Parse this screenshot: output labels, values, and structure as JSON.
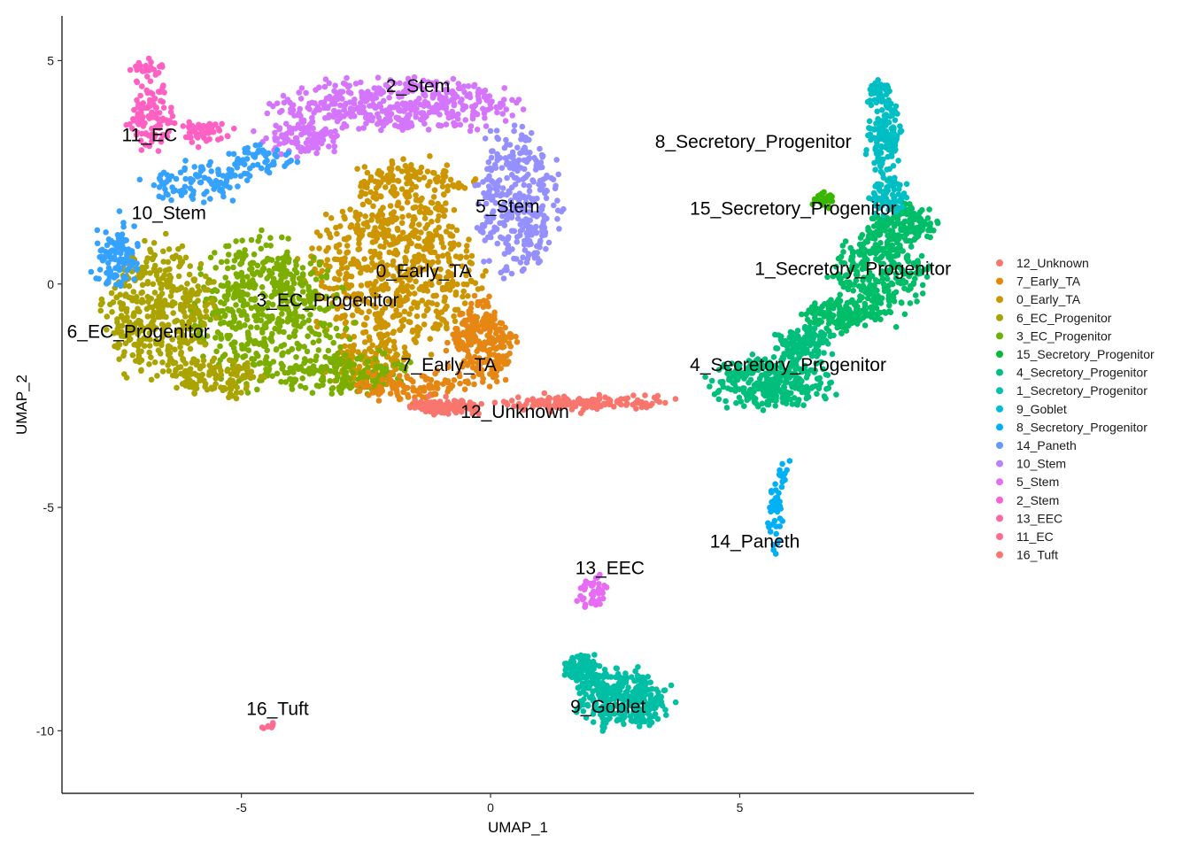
{
  "chart_data": {
    "type": "scatter",
    "title": "",
    "xlabel": "UMAP_1",
    "ylabel": "UMAP_2",
    "xlim": [
      -8.6,
      9.7
    ],
    "ylim": [
      -11.4,
      6.0
    ],
    "xticks": [
      -5,
      0,
      5
    ],
    "yticks": [
      5,
      0,
      -5,
      -10
    ],
    "xtick_labels": [
      "-5",
      "0",
      "5"
    ],
    "ytick_labels": [
      "5",
      "0",
      "-5",
      "-10"
    ],
    "grid": false,
    "legend_position": "right",
    "legend": [
      {
        "name": "12_Unknown",
        "color": "#F8766D"
      },
      {
        "name": "7_Early_TA",
        "color": "#E58700"
      },
      {
        "name": "0_Early_TA",
        "color": "#C99800"
      },
      {
        "name": "6_EC_Progenitor",
        "color": "#A3A500"
      },
      {
        "name": "3_EC_Progenitor",
        "color": "#6BB100"
      },
      {
        "name": "15_Secretory_Progenitor",
        "color": "#00BA38"
      },
      {
        "name": "4_Secretory_Progenitor",
        "color": "#00BF7D"
      },
      {
        "name": "1_Secretory_Progenitor",
        "color": "#00C0AF"
      },
      {
        "name": "9_Goblet",
        "color": "#00BCD8"
      },
      {
        "name": "8_Secretory_Progenitor",
        "color": "#00B0F6"
      },
      {
        "name": "14_Paneth",
        "color": "#619CFF"
      },
      {
        "name": "10_Stem",
        "color": "#B983FF"
      },
      {
        "name": "5_Stem",
        "color": "#E76BF3"
      },
      {
        "name": "2_Stem",
        "color": "#FD61D1"
      },
      {
        "name": "13_EEC",
        "color": "#FF67A4"
      },
      {
        "name": "11_EC",
        "color": "#FF6C91"
      },
      {
        "name": "16_Tuft",
        "color": "#F8766D"
      }
    ],
    "clusters": [
      {
        "name": "0_Early_TA",
        "label": "0_Early_TA",
        "color": "#CD9600",
        "label_x": -2.3,
        "label_y": 0.15,
        "n": 900,
        "regions": [
          {
            "cx": -2.0,
            "cy": 0.2,
            "rx": 2.0,
            "ry": 2.0,
            "w": 1.0
          },
          {
            "cx": -1.6,
            "cy": 2.2,
            "rx": 1.4,
            "ry": 0.7,
            "w": 0.25
          },
          {
            "cx": -2.5,
            "cy": -1.8,
            "rx": 1.0,
            "ry": 0.6,
            "w": 0.2
          }
        ]
      },
      {
        "name": "2_Stem",
        "label": "2_Stem",
        "color": "#D575FE",
        "label_x": -2.1,
        "label_y": 4.3,
        "n": 520,
        "regions": [
          {
            "cx": -1.9,
            "cy": 4.0,
            "rx": 2.8,
            "ry": 0.65,
            "w": 1.0
          },
          {
            "cx": -3.8,
            "cy": 3.3,
            "rx": 0.9,
            "ry": 0.45,
            "w": 0.25
          }
        ]
      },
      {
        "name": "5_Stem",
        "label": "5_Stem",
        "color": "#9590FF",
        "label_x": -0.3,
        "label_y": 1.6,
        "n": 330,
        "regions": [
          {
            "cx": 0.5,
            "cy": 1.9,
            "rx": 0.95,
            "ry": 1.9,
            "w": 1.0
          }
        ]
      },
      {
        "name": "3_EC_Progenitor",
        "label": "3_EC_Progenitor",
        "color": "#7CAE00",
        "label_x": -4.7,
        "label_y": -0.5,
        "n": 680,
        "regions": [
          {
            "cx": -4.5,
            "cy": -0.6,
            "rx": 1.7,
            "ry": 1.9,
            "w": 1.0
          },
          {
            "cx": -3.0,
            "cy": -2.0,
            "rx": 1.6,
            "ry": 0.55,
            "w": 0.35
          }
        ]
      },
      {
        "name": "6_EC_Progenitor",
        "label": "6_EC_Progenitor",
        "color": "#ABA300",
        "label_x": -8.5,
        "label_y": -1.2,
        "n": 520,
        "regions": [
          {
            "cx": -6.7,
            "cy": -0.6,
            "rx": 1.3,
            "ry": 1.75,
            "w": 1.0
          },
          {
            "cx": -5.5,
            "cy": -2.1,
            "rx": 1.1,
            "ry": 0.45,
            "w": 0.3
          }
        ]
      },
      {
        "name": "10_Stem",
        "label": "10_Stem",
        "color": "#35A2FF",
        "label_x": -7.2,
        "label_y": 1.45,
        "n": 260,
        "regions": [
          {
            "cx": -7.5,
            "cy": 0.6,
            "rx": 0.5,
            "ry": 0.9,
            "w": 0.6
          },
          {
            "cx": -5.8,
            "cy": 2.3,
            "rx": 1.3,
            "ry": 0.5,
            "w": 0.7
          },
          {
            "cx": -4.6,
            "cy": 2.8,
            "rx": 0.8,
            "ry": 0.4,
            "w": 0.4
          }
        ]
      },
      {
        "name": "11_EC",
        "label": "11_EC",
        "color": "#FF61C3",
        "label_x": -7.4,
        "label_y": 3.2,
        "n": 190,
        "regions": [
          {
            "cx": -6.8,
            "cy": 3.8,
            "rx": 0.5,
            "ry": 0.9,
            "w": 1.0
          },
          {
            "cx": -5.8,
            "cy": 3.4,
            "rx": 0.6,
            "ry": 0.35,
            "w": 0.5
          },
          {
            "cx": -6.9,
            "cy": 4.8,
            "rx": 0.4,
            "ry": 0.2,
            "w": 0.3
          }
        ]
      },
      {
        "name": "7_Early_TA",
        "label": "7_Early_TA",
        "color": "#E68613",
        "label_x": -1.8,
        "label_y": -1.95,
        "n": 360,
        "regions": [
          {
            "cx": -0.2,
            "cy": -1.3,
            "rx": 0.75,
            "ry": 1.2,
            "w": 1.0
          },
          {
            "cx": -1.6,
            "cy": -2.3,
            "rx": 1.3,
            "ry": 0.35,
            "w": 0.5
          }
        ]
      },
      {
        "name": "12_Unknown",
        "label": "12_Unknown",
        "color": "#F8766D",
        "label_x": -0.6,
        "label_y": -3.0,
        "n": 260,
        "regions": [
          {
            "cx": -0.9,
            "cy": -2.75,
            "rx": 0.9,
            "ry": 0.15,
            "w": 0.5
          },
          {
            "cx": 1.9,
            "cy": -2.65,
            "rx": 2.1,
            "ry": 0.13,
            "w": 1.0
          }
        ]
      },
      {
        "name": "1_Secretory_Progenitor",
        "label": "1_Secretory_Progenitor",
        "color": "#00BE67",
        "label_x": 5.3,
        "label_y": 0.2,
        "n": 560,
        "regions": [
          {
            "cx": 7.8,
            "cy": 0.2,
            "rx": 1.1,
            "ry": 1.3,
            "w": 1.0
          },
          {
            "cx": 8.3,
            "cy": 1.3,
            "rx": 0.8,
            "ry": 0.5,
            "w": 0.5
          },
          {
            "cx": 6.9,
            "cy": -0.7,
            "rx": 0.7,
            "ry": 0.4,
            "w": 0.4
          }
        ]
      },
      {
        "name": "4_Secretory_Progenitor",
        "label": "4_Secretory_Progenitor",
        "color": "#00BF7D",
        "label_x": 4.0,
        "label_y": -1.95,
        "n": 440,
        "regions": [
          {
            "cx": 5.6,
            "cy": -2.2,
            "rx": 1.5,
            "ry": 0.65,
            "w": 1.0
          },
          {
            "cx": 6.3,
            "cy": -1.3,
            "rx": 0.7,
            "ry": 0.4,
            "w": 0.4
          }
        ]
      },
      {
        "name": "8_Secretory_Progenitor",
        "label": "8_Secretory_Progenitor",
        "color": "#00BFC4",
        "label_x": 3.3,
        "label_y": 3.05,
        "n": 260,
        "regions": [
          {
            "cx": 7.9,
            "cy": 3.3,
            "rx": 0.4,
            "ry": 1.0,
            "w": 1.0
          },
          {
            "cx": 8.0,
            "cy": 2.0,
            "rx": 0.45,
            "ry": 0.5,
            "w": 0.6
          },
          {
            "cx": 7.8,
            "cy": 4.3,
            "rx": 0.25,
            "ry": 0.25,
            "w": 0.3
          }
        ]
      },
      {
        "name": "15_Secretory_Progenitor",
        "label": "15_Secretory_Progenitor",
        "color": "#39B600",
        "label_x": 4.0,
        "label_y": 1.55,
        "n": 30,
        "regions": [
          {
            "cx": 6.7,
            "cy": 1.9,
            "rx": 0.25,
            "ry": 0.12,
            "w": 1.0
          }
        ]
      },
      {
        "name": "14_Paneth",
        "label": "14_Paneth",
        "color": "#00B0F6",
        "label_x": 4.4,
        "label_y": -5.9,
        "n": 50,
        "regions": [
          {
            "cx": 5.7,
            "cy": -5.2,
            "rx": 0.12,
            "ry": 1.0,
            "w": 1.0
          },
          {
            "cx": 5.85,
            "cy": -4.2,
            "rx": 0.1,
            "ry": 0.3,
            "w": 0.4
          }
        ]
      },
      {
        "name": "13_EEC",
        "label": "13_EEC",
        "color": "#E76BF3",
        "label_x": 1.7,
        "label_y": -6.5,
        "n": 40,
        "regions": [
          {
            "cx": 2.0,
            "cy": -6.9,
            "rx": 0.35,
            "ry": 0.45,
            "w": 1.0
          }
        ]
      },
      {
        "name": "9_Goblet",
        "label": "9_Goblet",
        "color": "#00BFA5",
        "label_x": 1.6,
        "label_y": -9.6,
        "n": 400,
        "regions": [
          {
            "cx": 2.7,
            "cy": -9.3,
            "rx": 1.1,
            "ry": 0.75,
            "w": 1.0
          },
          {
            "cx": 1.8,
            "cy": -8.6,
            "rx": 0.4,
            "ry": 0.35,
            "w": 0.3
          }
        ]
      },
      {
        "name": "16_Tuft",
        "label": "16_Tuft",
        "color": "#FF6C91",
        "label_x": -4.9,
        "label_y": -9.65,
        "n": 8,
        "regions": [
          {
            "cx": -4.45,
            "cy": -9.9,
            "rx": 0.12,
            "ry": 0.1,
            "w": 1.0
          }
        ]
      }
    ]
  }
}
